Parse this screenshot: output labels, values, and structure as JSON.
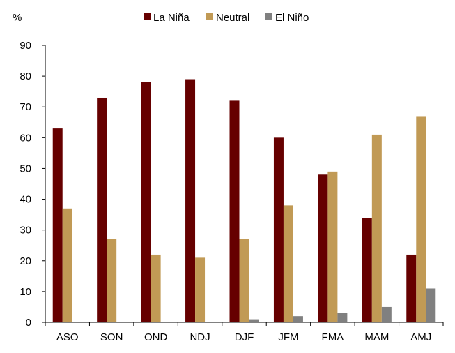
{
  "chart_data": {
    "type": "bar",
    "ylabel": "%",
    "categories": [
      "ASO",
      "SON",
      "OND",
      "NDJ",
      "DJF",
      "JFM",
      "FMA",
      "MAM",
      "AMJ"
    ],
    "series": [
      {
        "name": "La Niña",
        "color": "#660000",
        "values": [
          63,
          73,
          78,
          79,
          72,
          60,
          48,
          34,
          22
        ]
      },
      {
        "name": "Neutral",
        "color": "#C19A55",
        "values": [
          37,
          27,
          22,
          21,
          27,
          38,
          49,
          61,
          67
        ]
      },
      {
        "name": "El Niño",
        "color": "#808080",
        "values": [
          0,
          0,
          0,
          0,
          1,
          2,
          3,
          5,
          11
        ]
      }
    ],
    "ylim": [
      0,
      90
    ],
    "yticks": [
      0,
      10,
      20,
      30,
      40,
      50,
      60,
      70,
      80,
      90
    ],
    "grid": false,
    "legend": "top-center"
  }
}
